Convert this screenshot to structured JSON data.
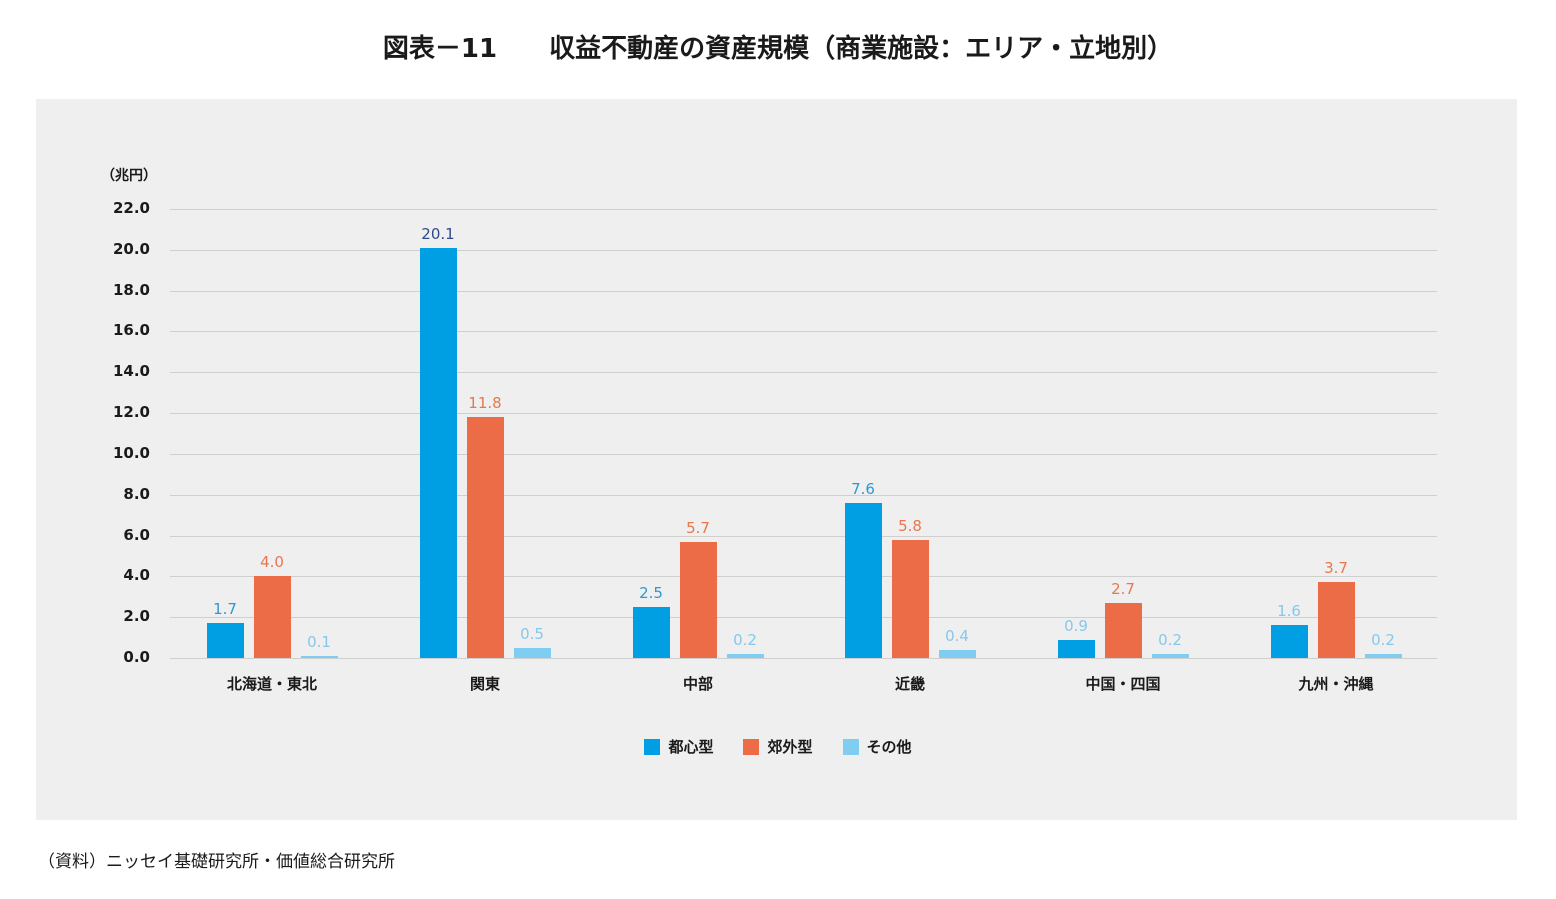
{
  "figure": {
    "title": "図表－11　　収益不動産の資産規模（商業施設：エリア・立地別）",
    "source": "（資料）ニッセイ基礎研究所・価値総合研究所"
  },
  "chart_data": {
    "type": "bar",
    "title": "収益不動産の資産規模（商業施設：エリア・立地別）",
    "figure_number": "図表－11",
    "xlabel": "",
    "ylabel": "（兆円）",
    "ylim": [
      0,
      22
    ],
    "yticks": [
      "0.0",
      "2.0",
      "4.0",
      "6.0",
      "8.0",
      "10.0",
      "12.0",
      "14.0",
      "16.0",
      "18.0",
      "20.0",
      "22.0"
    ],
    "grid": true,
    "legend_position": "bottom",
    "categories": [
      "北海道・東北",
      "関東",
      "中部",
      "近畿",
      "中国・四国",
      "九州・沖縄"
    ],
    "series": [
      {
        "name": "都心型",
        "color": "#009fe3",
        "values": [
          1.7,
          20.1,
          2.5,
          7.6,
          0.9,
          1.6
        ],
        "label_colors": [
          "#2a9ad6",
          "#2e4a8a",
          "#2a9ad6",
          "#2a9ad6",
          "#86c8ec",
          "#86c8ec"
        ]
      },
      {
        "name": "郊外型",
        "color": "#ec6c47",
        "values": [
          4.0,
          11.8,
          5.7,
          5.8,
          2.7,
          3.7
        ],
        "label_colors": [
          "#e8774f",
          "#e8774f",
          "#e8774f",
          "#e8774f",
          "#e8774f",
          "#e8774f"
        ]
      },
      {
        "name": "その他",
        "color": "#7fcdf0",
        "values": [
          0.1,
          0.5,
          0.2,
          0.4,
          0.2,
          0.2
        ],
        "label_colors": [
          "#86c8ec",
          "#86c8ec",
          "#86c8ec",
          "#86c8ec",
          "#86c8ec",
          "#86c8ec"
        ]
      }
    ],
    "source": "（資料）ニッセイ基礎研究所・価値総合研究所"
  }
}
